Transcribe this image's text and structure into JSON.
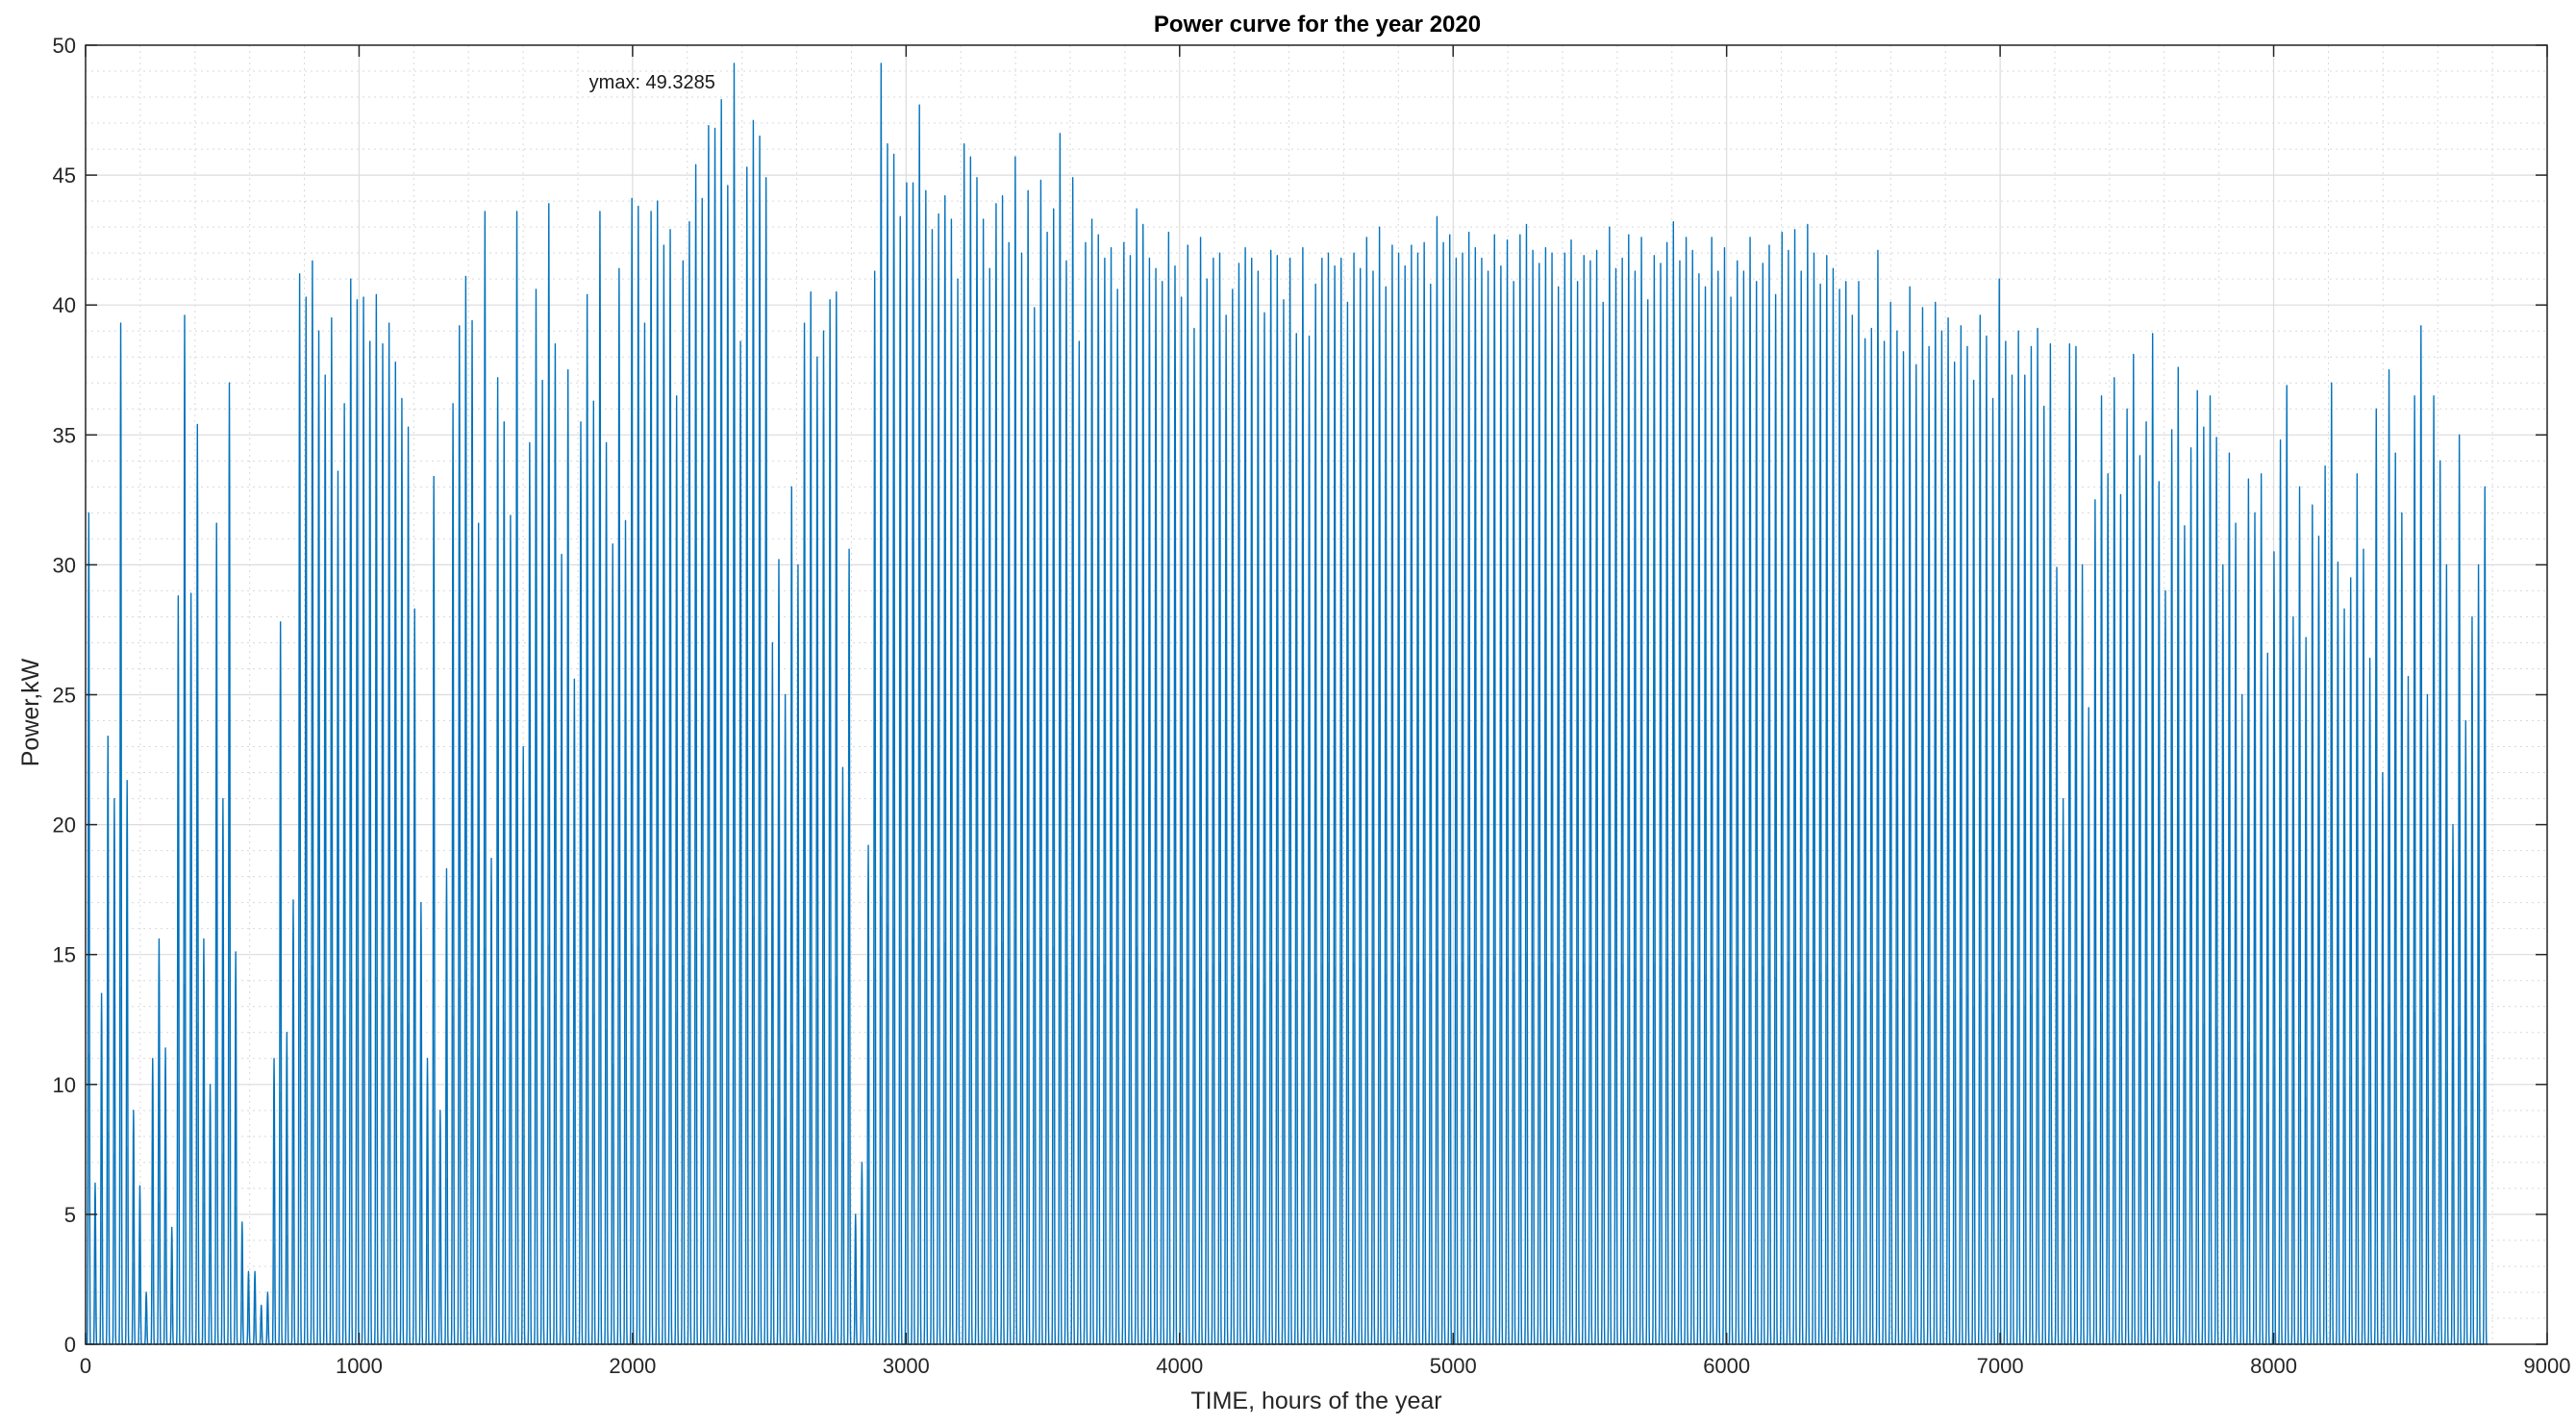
{
  "chart_data": {
    "type": "line",
    "title": "Power curve for the year 2020",
    "xlabel": "TIME, hours of the year",
    "ylabel": "Power,kW",
    "xlim": [
      0,
      9000
    ],
    "ylim": [
      0,
      50
    ],
    "xticks": [
      0,
      1000,
      2000,
      3000,
      4000,
      5000,
      6000,
      7000,
      8000,
      9000
    ],
    "yticks": [
      0,
      5,
      10,
      15,
      20,
      25,
      30,
      35,
      40,
      45,
      50
    ],
    "x_tick_labels": [
      "0",
      "1000",
      "2000",
      "3000",
      "4000",
      "5000",
      "6000",
      "7000",
      "8000",
      "9000"
    ],
    "y_tick_labels": [
      "0",
      "5",
      "10",
      "15",
      "20",
      "25",
      "30",
      "35",
      "40",
      "45",
      "50"
    ],
    "grid": true,
    "minor_grid": true,
    "series_color": "#0072bd",
    "light_series_color": "#9fc4e0",
    "annotation": {
      "text": "ymax: 49.3285",
      "x": 1834,
      "y": 49.3285
    },
    "x_max_hour": 8784,
    "daily_peaks_kW": [
      32.0,
      6.2,
      13.5,
      23.4,
      21.0,
      39.3,
      21.7,
      9.0,
      6.1,
      2.0,
      11.0,
      15.6,
      11.4,
      4.5,
      28.8,
      39.6,
      28.9,
      35.4,
      15.6,
      10.0,
      31.6,
      21.0,
      37.0,
      15.1,
      4.7,
      2.8,
      2.8,
      1.5,
      2.0,
      11.0,
      27.8,
      12.0,
      17.1,
      41.2,
      40.3,
      41.7,
      39.0,
      37.3,
      39.5,
      33.6,
      36.2,
      41.0,
      40.2,
      40.3,
      38.6,
      40.4,
      38.5,
      39.3,
      37.8,
      36.4,
      35.3,
      28.3,
      17.0,
      11.0,
      33.4,
      9.0,
      18.3,
      36.2,
      39.2,
      41.1,
      39.4,
      31.6,
      43.6,
      18.7,
      37.2,
      35.5,
      31.9,
      43.6,
      23.0,
      34.7,
      40.6,
      37.1,
      43.9,
      38.5,
      30.4,
      37.5,
      25.6,
      35.5,
      40.4,
      36.3,
      43.6,
      34.7,
      30.8,
      41.4,
      31.7,
      44.1,
      43.8,
      39.3,
      43.6,
      44.0,
      42.3,
      42.9,
      36.5,
      41.7,
      43.2,
      45.4,
      44.1,
      46.9,
      46.8,
      47.9,
      44.6,
      49.3,
      38.6,
      45.3,
      47.1,
      46.5,
      44.9,
      27.0,
      30.2,
      25.0,
      33.0,
      30.0,
      39.3,
      40.5,
      38.0,
      39.0,
      40.2,
      40.5,
      22.2,
      30.6,
      5.0,
      7.0,
      19.2,
      41.3,
      49.3,
      46.2,
      45.8,
      43.4,
      44.7,
      44.7,
      47.7,
      44.4,
      42.9,
      43.5,
      44.2,
      43.3,
      41.0,
      46.2,
      45.7,
      44.9,
      43.3,
      41.4,
      43.9,
      44.2,
      42.4,
      45.7,
      42.0,
      44.4,
      39.9,
      44.8,
      42.8,
      43.7,
      46.6,
      41.7,
      44.9,
      38.6,
      42.4,
      43.3,
      42.7,
      41.8,
      42.2,
      40.6,
      42.4,
      41.9,
      43.7,
      43.1,
      41.8,
      41.4,
      40.9,
      42.8,
      41.5,
      40.3,
      42.3,
      39.1,
      42.6,
      41.0,
      41.8,
      42.0,
      39.6,
      40.6,
      41.6,
      42.2,
      41.8,
      41.3,
      39.7,
      42.1,
      41.9,
      40.2,
      41.8,
      38.9,
      42.2,
      38.8,
      40.8,
      41.8,
      42.0,
      41.5,
      41.8,
      40.1,
      42.0,
      41.4,
      42.6,
      41.3,
      43.0,
      40.7,
      42.3,
      42.0,
      41.5,
      42.3,
      42.0,
      42.4,
      40.8,
      43.4,
      42.4,
      42.7,
      41.8,
      42.0,
      42.8,
      42.2,
      41.8,
      41.3,
      42.7,
      41.5,
      42.5,
      40.9,
      42.7,
      43.1,
      42.1,
      41.6,
      42.2,
      42.0,
      40.7,
      42.0,
      42.5,
      40.9,
      41.9,
      41.7,
      42.1,
      40.1,
      43.0,
      41.4,
      41.8,
      42.7,
      41.3,
      42.6,
      40.2,
      41.9,
      41.6,
      42.4,
      43.2,
      41.7,
      42.6,
      42.1,
      41.2,
      40.7,
      42.6,
      41.3,
      42.2,
      40.3,
      41.7,
      41.3,
      42.6,
      40.9,
      41.6,
      42.3,
      40.4,
      42.8,
      42.1,
      42.9,
      41.3,
      43.1,
      42.0,
      40.8,
      41.9,
      41.4,
      40.6,
      40.9,
      39.6,
      40.9,
      38.7,
      39.1,
      42.1,
      38.6,
      40.1,
      39.0,
      38.2,
      40.7,
      37.7,
      39.9,
      38.4,
      40.1,
      39.0,
      39.5,
      37.8,
      39.2,
      38.4,
      37.1,
      39.6,
      38.8,
      36.4,
      41.0,
      38.6,
      37.3,
      39.0,
      37.3,
      38.4,
      39.1,
      36.1,
      38.5,
      29.9,
      21.0,
      38.5,
      38.4,
      30.0,
      24.5,
      32.5,
      36.5,
      33.5,
      37.2,
      32.7,
      36.0,
      38.1,
      34.2,
      35.5,
      38.9,
      33.2,
      29.0,
      35.2,
      37.6,
      31.5,
      34.5,
      36.7,
      35.3,
      36.5,
      34.9,
      30.0,
      34.3,
      31.6,
      25.0,
      33.3,
      32.0,
      33.5,
      26.6,
      30.5,
      34.8,
      36.9,
      28.0,
      33.0,
      27.2,
      32.3,
      31.1,
      33.8,
      37.0,
      30.1,
      28.3,
      29.5,
      33.5,
      30.6,
      26.4,
      36.0,
      22.0,
      37.5,
      34.3,
      32.0,
      25.7,
      36.5,
      39.2,
      25.0,
      36.5,
      34.0,
      30.0,
      20.0,
      35.0,
      24.0,
      28.0,
      30.0,
      33.0
    ]
  }
}
